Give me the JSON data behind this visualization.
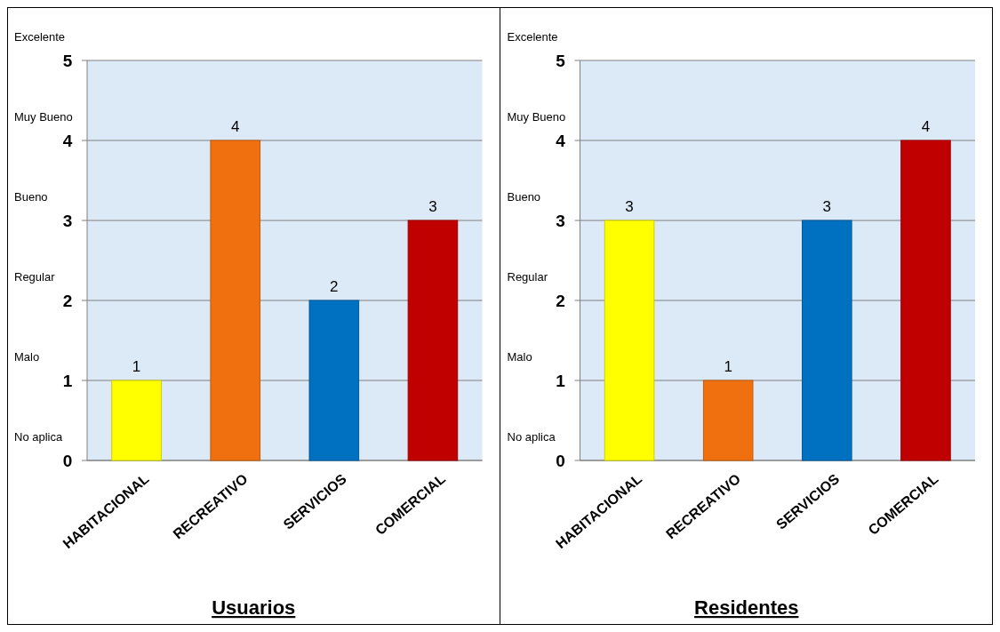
{
  "chart_data": [
    {
      "type": "bar",
      "title": "Usuarios",
      "categories": [
        "HABITACIONAL",
        "RECREATIVO",
        "SERVICIOS",
        "COMERCIAL"
      ],
      "values": [
        1,
        4,
        2,
        3
      ],
      "colors": [
        "#ffff00",
        "#f07010",
        "#0070c0",
        "#c00000"
      ],
      "ylim": [
        0,
        5
      ],
      "yticks": [
        0,
        1,
        2,
        3,
        4,
        5
      ],
      "grid": "y",
      "data_labels": true,
      "annotations": [
        "Excelente",
        "Muy Bueno",
        "Bueno",
        "Regular",
        "Malo",
        "No aplica"
      ]
    },
    {
      "type": "bar",
      "title": "Residentes",
      "categories": [
        "HABITACIONAL",
        "RECREATIVO",
        "SERVICIOS",
        "COMERCIAL"
      ],
      "values": [
        3,
        1,
        3,
        4
      ],
      "colors": [
        "#ffff00",
        "#f07010",
        "#0070c0",
        "#c00000"
      ],
      "ylim": [
        0,
        5
      ],
      "yticks": [
        0,
        1,
        2,
        3,
        4,
        5
      ],
      "grid": "y",
      "data_labels": true,
      "annotations": [
        "Excelente",
        "Muy Bueno",
        "Bueno",
        "Regular",
        "Malo",
        "No aplica"
      ]
    }
  ]
}
